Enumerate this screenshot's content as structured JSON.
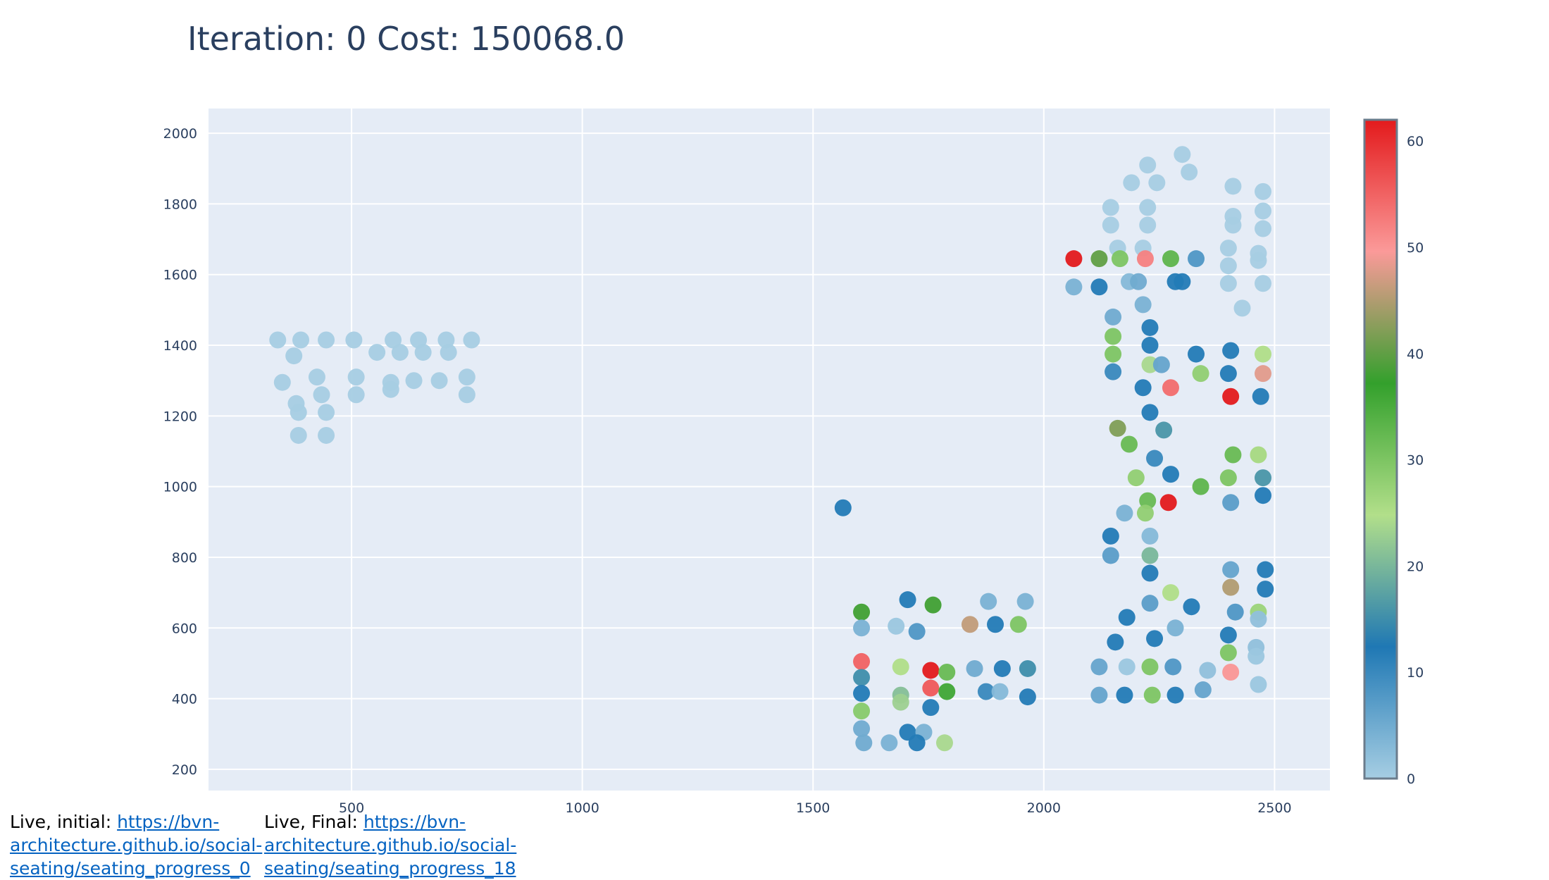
{
  "title": "Iteration: 0 Cost: 150068.0",
  "links": {
    "initial_label": "Live, initial:",
    "initial_url": "https://bvn-architecture.github.io/social-seating/seating_progress_0",
    "final_label": "Live, Final:",
    "final_url": "https://bvn-architecture.github.io/social-seating/seating_progress_18"
  },
  "chart_data": {
    "type": "scatter",
    "title": "Iteration: 0 Cost: 150068.0",
    "xlabel": "",
    "ylabel": "",
    "xlim": [
      190,
      2620
    ],
    "ylim": [
      140,
      2070
    ],
    "x_ticks": [
      500,
      1000,
      1500,
      2000,
      2500
    ],
    "y_ticks": [
      200,
      400,
      600,
      800,
      1000,
      1200,
      1400,
      1600,
      1800,
      2000
    ],
    "grid": true,
    "colorbar": {
      "min": 0,
      "max": 62,
      "ticks": [
        0,
        10,
        20,
        30,
        40,
        50,
        60
      ],
      "colorscale": [
        [
          0,
          "#a6cee3"
        ],
        [
          0.2,
          "#1f78b4"
        ],
        [
          0.4,
          "#b2df8a"
        ],
        [
          0.6,
          "#33a02c"
        ],
        [
          0.8,
          "#fb9a99"
        ],
        [
          1,
          "#e31a1c"
        ]
      ]
    },
    "points": [
      [
        340,
        1415,
        0
      ],
      [
        390,
        1415,
        0
      ],
      [
        445,
        1415,
        0
      ],
      [
        505,
        1415,
        0
      ],
      [
        590,
        1415,
        0
      ],
      [
        645,
        1415,
        0
      ],
      [
        705,
        1415,
        0
      ],
      [
        760,
        1415,
        0
      ],
      [
        375,
        1370,
        0
      ],
      [
        555,
        1380,
        0
      ],
      [
        605,
        1380,
        0
      ],
      [
        655,
        1380,
        0
      ],
      [
        710,
        1380,
        0
      ],
      [
        350,
        1295,
        0
      ],
      [
        425,
        1310,
        0
      ],
      [
        510,
        1310,
        0
      ],
      [
        585,
        1295,
        0
      ],
      [
        635,
        1300,
        0
      ],
      [
        690,
        1300,
        0
      ],
      [
        750,
        1310,
        0
      ],
      [
        435,
        1260,
        0
      ],
      [
        510,
        1260,
        0
      ],
      [
        585,
        1275,
        0
      ],
      [
        750,
        1260,
        0
      ],
      [
        380,
        1235,
        0
      ],
      [
        385,
        1210,
        0
      ],
      [
        445,
        1210,
        0
      ],
      [
        385,
        1145,
        0
      ],
      [
        445,
        1145,
        0
      ],
      [
        1565,
        940,
        12
      ],
      [
        2300,
        1940,
        0
      ],
      [
        2225,
        1910,
        0
      ],
      [
        2315,
        1890,
        0
      ],
      [
        2190,
        1860,
        0
      ],
      [
        2245,
        1860,
        0
      ],
      [
        2410,
        1850,
        0
      ],
      [
        2475,
        1835,
        0
      ],
      [
        2145,
        1790,
        0
      ],
      [
        2225,
        1790,
        0
      ],
      [
        2475,
        1780,
        0
      ],
      [
        2410,
        1765,
        0
      ],
      [
        2145,
        1740,
        0
      ],
      [
        2225,
        1740,
        0
      ],
      [
        2410,
        1740,
        0
      ],
      [
        2475,
        1730,
        0
      ],
      [
        2160,
        1675,
        0
      ],
      [
        2215,
        1675,
        0
      ],
      [
        2400,
        1675,
        0
      ],
      [
        2465,
        1660,
        0
      ],
      [
        2400,
        1625,
        0
      ],
      [
        2465,
        1640,
        0
      ],
      [
        2065,
        1645,
        62
      ],
      [
        2120,
        1645,
        40
      ],
      [
        2165,
        1645,
        30
      ],
      [
        2220,
        1645,
        52
      ],
      [
        2275,
        1645,
        33
      ],
      [
        2330,
        1645,
        8
      ],
      [
        2065,
        1565,
        4
      ],
      [
        2120,
        1565,
        12
      ],
      [
        2185,
        1580,
        3
      ],
      [
        2205,
        1580,
        5
      ],
      [
        2285,
        1580,
        12
      ],
      [
        2300,
        1580,
        12
      ],
      [
        2400,
        1575,
        0
      ],
      [
        2475,
        1575,
        0
      ],
      [
        2215,
        1515,
        4
      ],
      [
        2430,
        1505,
        0
      ],
      [
        2150,
        1480,
        5
      ],
      [
        2230,
        1450,
        12
      ],
      [
        2150,
        1425,
        30
      ],
      [
        2230,
        1400,
        12
      ],
      [
        2150,
        1375,
        30
      ],
      [
        2330,
        1375,
        12
      ],
      [
        2405,
        1385,
        12
      ],
      [
        2475,
        1375,
        25
      ],
      [
        2230,
        1345,
        24
      ],
      [
        2255,
        1345,
        6
      ],
      [
        2150,
        1325,
        10
      ],
      [
        2340,
        1320,
        28
      ],
      [
        2400,
        1320,
        12
      ],
      [
        2475,
        1320,
        48
      ],
      [
        2215,
        1280,
        12
      ],
      [
        2275,
        1280,
        54
      ],
      [
        2405,
        1255,
        62
      ],
      [
        2470,
        1255,
        12
      ],
      [
        2160,
        1165,
        42
      ],
      [
        2230,
        1210,
        12
      ],
      [
        2185,
        1120,
        32
      ],
      [
        2260,
        1160,
        16
      ],
      [
        2240,
        1080,
        10
      ],
      [
        2410,
        1090,
        32
      ],
      [
        2465,
        1090,
        26
      ],
      [
        2200,
        1025,
        28
      ],
      [
        2275,
        1035,
        12
      ],
      [
        2400,
        1025,
        30
      ],
      [
        2475,
        1025,
        16
      ],
      [
        2340,
        1000,
        33
      ],
      [
        2225,
        960,
        32
      ],
      [
        2270,
        955,
        62
      ],
      [
        2405,
        955,
        7
      ],
      [
        2475,
        975,
        12
      ],
      [
        2175,
        925,
        4
      ],
      [
        2220,
        925,
        28
      ],
      [
        2230,
        860,
        3
      ],
      [
        2145,
        860,
        12
      ],
      [
        2145,
        805,
        7
      ],
      [
        2230,
        805,
        20
      ],
      [
        2230,
        755,
        12
      ],
      [
        2405,
        765,
        6
      ],
      [
        2480,
        765,
        12
      ],
      [
        2405,
        715,
        45
      ],
      [
        2480,
        710,
        12
      ],
      [
        2275,
        700,
        25
      ],
      [
        2230,
        670,
        7
      ],
      [
        2320,
        660,
        12
      ],
      [
        2180,
        630,
        12
      ],
      [
        2415,
        645,
        8
      ],
      [
        2465,
        645,
        27
      ],
      [
        2465,
        625,
        2
      ],
      [
        2285,
        600,
        4
      ],
      [
        2240,
        570,
        12
      ],
      [
        2155,
        560,
        12
      ],
      [
        2400,
        580,
        12
      ],
      [
        2460,
        545,
        2
      ],
      [
        2460,
        520,
        1
      ],
      [
        2400,
        530,
        30
      ],
      [
        2120,
        490,
        6
      ],
      [
        2180,
        490,
        1
      ],
      [
        2230,
        490,
        30
      ],
      [
        2280,
        490,
        8
      ],
      [
        2355,
        480,
        2
      ],
      [
        2405,
        475,
        50
      ],
      [
        2465,
        440,
        1
      ],
      [
        2345,
        425,
        6
      ],
      [
        2120,
        410,
        6
      ],
      [
        2175,
        410,
        12
      ],
      [
        2235,
        410,
        30
      ],
      [
        2285,
        410,
        12
      ],
      [
        1605,
        645,
        38
      ],
      [
        1705,
        680,
        12
      ],
      [
        1760,
        665,
        38
      ],
      [
        1880,
        675,
        4
      ],
      [
        1960,
        675,
        4
      ],
      [
        1605,
        600,
        4
      ],
      [
        1680,
        605,
        1
      ],
      [
        1725,
        590,
        8
      ],
      [
        1840,
        610,
        46
      ],
      [
        1895,
        610,
        12
      ],
      [
        1945,
        610,
        30
      ],
      [
        1605,
        505,
        55
      ],
      [
        1690,
        490,
        25
      ],
      [
        1755,
        480,
        62
      ],
      [
        1790,
        475,
        32
      ],
      [
        1850,
        485,
        5
      ],
      [
        1910,
        485,
        12
      ],
      [
        1965,
        485,
        15
      ],
      [
        1605,
        460,
        15
      ],
      [
        1605,
        415,
        12
      ],
      [
        1690,
        410,
        21
      ],
      [
        1755,
        430,
        56
      ],
      [
        1790,
        420,
        36
      ],
      [
        1875,
        420,
        10
      ],
      [
        1905,
        420,
        3
      ],
      [
        1965,
        405,
        12
      ],
      [
        1690,
        390,
        23
      ],
      [
        1755,
        375,
        12
      ],
      [
        1605,
        365,
        29
      ],
      [
        1605,
        315,
        5
      ],
      [
        1610,
        275,
        5
      ],
      [
        1665,
        275,
        4
      ],
      [
        1705,
        305,
        12
      ],
      [
        1740,
        305,
        4
      ],
      [
        1725,
        275,
        12
      ],
      [
        1785,
        275,
        24
      ]
    ]
  }
}
